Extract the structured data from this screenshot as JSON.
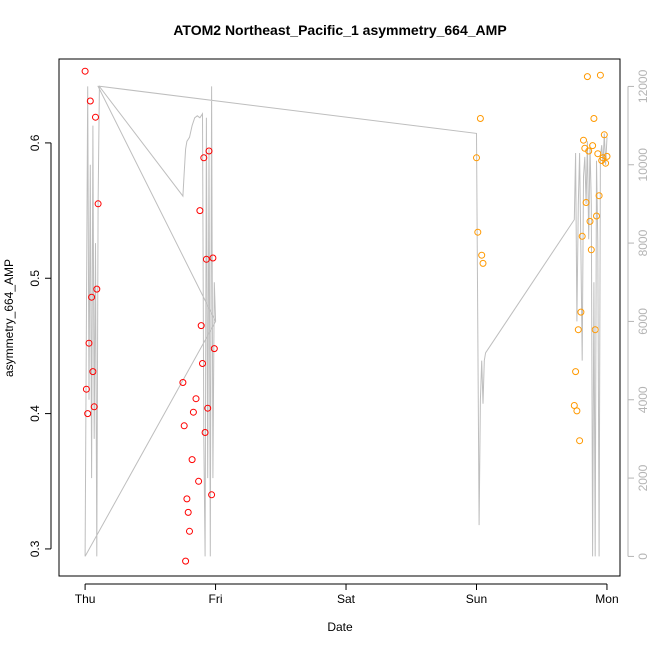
{
  "chart_data": {
    "type": "scatter",
    "title": "ATOM2 Northeast_Pacific_1 asymmetry_664_AMP",
    "xlabel": "Date",
    "ylabel": "asymmetry_664_AMP",
    "x_ticks": [
      "Thu",
      "Fri",
      "Sat",
      "Sun",
      "Mon"
    ],
    "x_tick_days": [
      0,
      1,
      2,
      3,
      4
    ],
    "xlim": [
      -0.2,
      4.1
    ],
    "ylim": [
      0.28,
      0.662
    ],
    "y_ticks": [
      0.3,
      0.4,
      0.5,
      0.6
    ],
    "y_right_ticks": [
      0,
      2000,
      4000,
      6000,
      8000,
      10000,
      12000
    ],
    "y_right_lim": [
      -500,
      12700
    ],
    "grid": false,
    "colors": {
      "series_red": "#ff0000",
      "series_orange": "#ff9900",
      "line_gray": "#bebebe",
      "axis": "#000000",
      "right_axis": "#b4b4b4"
    },
    "series": [
      {
        "color": "red",
        "x": [
          0.0,
          0.01,
          0.02,
          0.03,
          0.04,
          0.05,
          0.06,
          0.07,
          0.08,
          0.09,
          0.1,
          0.75,
          0.76,
          0.77,
          0.78,
          0.79,
          0.8,
          0.82,
          0.83,
          0.85,
          0.87,
          0.88,
          0.89,
          0.9,
          0.91,
          0.92,
          0.93,
          0.94,
          0.95,
          0.97,
          0.98,
          0.99
        ],
        "y": [
          0.653,
          0.418,
          0.4,
          0.452,
          0.631,
          0.486,
          0.431,
          0.405,
          0.619,
          0.492,
          0.555,
          0.423,
          0.391,
          0.291,
          0.337,
          0.327,
          0.313,
          0.366,
          0.401,
          0.411,
          0.35,
          0.55,
          0.465,
          0.437,
          0.589,
          0.386,
          0.514,
          0.404,
          0.594,
          0.34,
          0.515,
          0.448
        ]
      },
      {
        "color": "orange",
        "x": [
          3.0,
          3.01,
          3.03,
          3.04,
          3.05,
          3.75,
          3.76,
          3.77,
          3.78,
          3.79,
          3.8,
          3.81,
          3.82,
          3.83,
          3.84,
          3.85,
          3.86,
          3.87,
          3.88,
          3.89,
          3.9,
          3.91,
          3.92,
          3.93,
          3.94,
          3.95,
          3.96,
          3.97,
          3.98,
          3.99,
          4.0
        ],
        "y": [
          0.589,
          0.534,
          0.618,
          0.517,
          0.511,
          0.406,
          0.431,
          0.402,
          0.462,
          0.38,
          0.475,
          0.531,
          0.602,
          0.596,
          0.556,
          0.649,
          0.594,
          0.542,
          0.521,
          0.598,
          0.618,
          0.462,
          0.546,
          0.592,
          0.561,
          0.65,
          0.587,
          0.589,
          0.606,
          0.585,
          0.59
        ]
      }
    ],
    "line_series": {
      "axis": "right",
      "x": [
        0.0,
        0.02,
        0.03,
        0.04,
        0.05,
        0.06,
        0.07,
        0.08,
        0.09,
        0.1,
        0.11,
        0.75,
        0.76,
        0.77,
        0.78,
        0.8,
        0.82,
        0.84,
        0.86,
        0.88,
        0.9,
        0.91,
        0.92,
        0.93,
        0.94,
        0.95,
        0.96,
        0.97,
        0.98,
        0.99,
        1.0,
        0.0,
        1.0,
        1.0,
        0.1,
        0.11,
        0.12,
        3.0,
        3.02,
        3.03,
        3.04,
        3.05,
        3.06,
        3.07,
        3.75,
        3.76,
        3.77,
        3.78,
        3.79,
        3.8,
        3.81,
        3.82,
        3.83,
        3.84,
        3.85,
        3.86,
        3.87,
        3.88,
        3.89,
        3.9,
        3.91,
        3.92,
        3.93,
        3.94,
        3.95,
        3.96,
        3.97,
        3.98,
        3.99,
        4.0
      ],
      "y": [
        0,
        12000,
        4000,
        10000,
        2000,
        11000,
        3000,
        8000,
        0,
        9000,
        12000,
        9200,
        9800,
        10400,
        10600,
        10700,
        11000,
        11200,
        11250,
        11200,
        11300,
        3000,
        0,
        11200,
        2000,
        10400,
        0,
        12000,
        2000,
        7000,
        6000,
        0,
        6000,
        6000,
        12000,
        12000,
        12000,
        10800,
        800,
        4000,
        5000,
        3900,
        5000,
        5200,
        8600,
        10300,
        6000,
        9000,
        10300,
        7800,
        5000,
        9700,
        10200,
        9000,
        10600,
        8100,
        10500,
        9000,
        0,
        7000,
        0,
        10100,
        8000,
        0,
        10200,
        10500,
        10000,
        10800,
        10000,
        10700
      ]
    }
  }
}
